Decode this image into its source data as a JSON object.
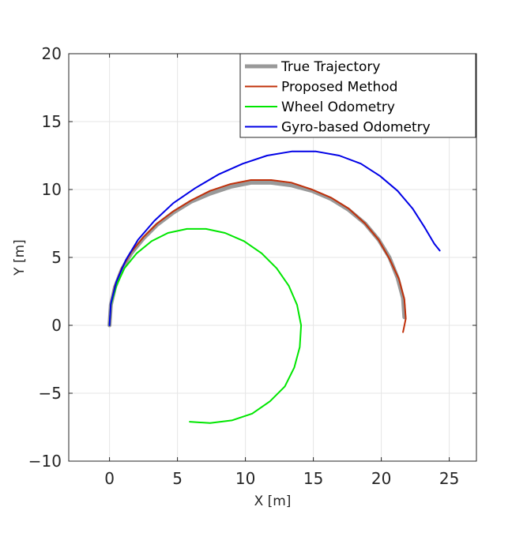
{
  "chart_data": {
    "type": "line",
    "title": "",
    "xlabel": "X [m]",
    "ylabel": "Y [m]",
    "xlim": [
      -3,
      27
    ],
    "ylim": [
      -10,
      20
    ],
    "xticks": [
      0,
      5,
      10,
      15,
      20,
      25
    ],
    "yticks": [
      -10,
      -5,
      0,
      5,
      10,
      15,
      20
    ],
    "xtick_labels": [
      "0",
      "5",
      "10",
      "15",
      "20",
      "25"
    ],
    "ytick_labels": [
      "−10",
      "−5",
      "0",
      "5",
      "10",
      "15",
      "20"
    ],
    "grid": true,
    "legend_position": "top-right",
    "series": [
      {
        "name": "True Trajectory",
        "color": "#999999",
        "x": [
          0,
          0.1,
          0.4,
          0.9,
          1.6,
          2.5,
          3.5,
          4.7,
          6.0,
          7.4,
          8.9,
          10.4,
          11.9,
          13.4,
          14.9,
          16.3,
          17.6,
          18.8,
          19.8,
          20.6,
          21.2,
          21.6,
          21.7
        ],
        "y": [
          0,
          1.5,
          2.8,
          4.1,
          5.3,
          6.4,
          7.4,
          8.3,
          9.1,
          9.7,
          10.2,
          10.5,
          10.5,
          10.3,
          9.9,
          9.3,
          8.5,
          7.5,
          6.3,
          5.0,
          3.5,
          2.0,
          0.6
        ]
      },
      {
        "name": "Proposed Method",
        "color": "#c0300a",
        "x": [
          0,
          0.1,
          0.4,
          0.9,
          1.6,
          2.5,
          3.5,
          4.7,
          6.0,
          7.4,
          8.9,
          10.4,
          11.9,
          13.4,
          14.9,
          16.3,
          17.6,
          18.8,
          19.8,
          20.6,
          21.3,
          21.7,
          21.8,
          21.6
        ],
        "y": [
          0,
          1.5,
          2.9,
          4.2,
          5.4,
          6.5,
          7.5,
          8.4,
          9.2,
          9.9,
          10.4,
          10.7,
          10.7,
          10.5,
          10.0,
          9.4,
          8.6,
          7.5,
          6.3,
          4.9,
          3.4,
          1.9,
          0.5,
          -0.5
        ]
      },
      {
        "name": "Wheel Odometry",
        "color": "#00e600",
        "x": [
          0,
          0.1,
          0.5,
          1.1,
          2.0,
          3.1,
          4.3,
          5.7,
          7.1,
          8.5,
          9.9,
          11.2,
          12.3,
          13.2,
          13.8,
          14.1,
          14.0,
          13.6,
          12.9,
          11.8,
          10.5,
          9.0,
          7.4,
          5.9
        ],
        "y": [
          0,
          1.5,
          2.9,
          4.2,
          5.3,
          6.2,
          6.8,
          7.1,
          7.1,
          6.8,
          6.2,
          5.3,
          4.2,
          2.9,
          1.5,
          0,
          -1.6,
          -3.1,
          -4.5,
          -5.6,
          -6.5,
          -7.0,
          -7.2,
          -7.1
        ]
      },
      {
        "name": "Gyro-based Odometry",
        "color": "#0000e6",
        "x": [
          0,
          0.1,
          0.5,
          1.2,
          2.1,
          3.3,
          4.7,
          6.3,
          8.0,
          9.8,
          11.6,
          13.4,
          15.2,
          16.9,
          18.5,
          19.9,
          21.2,
          22.3,
          23.2,
          23.9,
          24.3
        ],
        "y": [
          0,
          1.6,
          3.2,
          4.8,
          6.3,
          7.7,
          9.0,
          10.1,
          11.1,
          11.9,
          12.5,
          12.8,
          12.8,
          12.5,
          11.9,
          11.0,
          9.9,
          8.6,
          7.2,
          6.0,
          5.5
        ]
      }
    ]
  }
}
